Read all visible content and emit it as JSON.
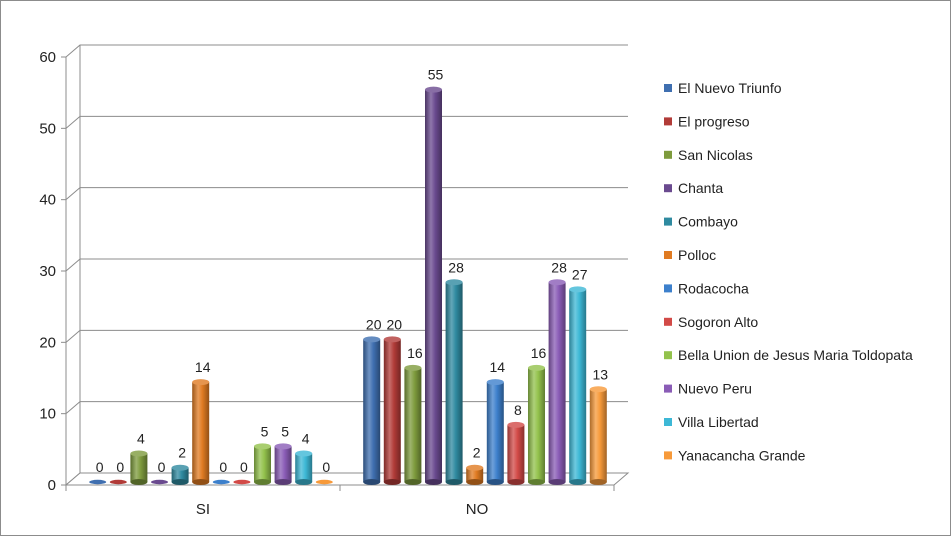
{
  "chart_data": {
    "type": "bar",
    "categories": [
      "SI",
      "NO"
    ],
    "ylim": [
      0,
      60
    ],
    "yticks": [
      0,
      10,
      20,
      30,
      40,
      50,
      60
    ],
    "grid": true,
    "legend_position": "right",
    "series": [
      {
        "name": "El Nuevo Triunfo",
        "color": "#3f6fb0",
        "values": [
          0,
          20
        ]
      },
      {
        "name": "El progreso",
        "color": "#b13b38",
        "values": [
          0,
          20
        ]
      },
      {
        "name": "San Nicolas",
        "color": "#7e9b3d",
        "values": [
          4,
          16
        ]
      },
      {
        "name": "Chanta",
        "color": "#6a4a8f",
        "values": [
          0,
          55
        ]
      },
      {
        "name": "Combayo",
        "color": "#2f8aa0",
        "values": [
          2,
          28
        ]
      },
      {
        "name": "Polloc",
        "color": "#e07b22",
        "values": [
          14,
          2
        ]
      },
      {
        "name": "Rodacocha",
        "color": "#3d80cc",
        "values": [
          0,
          14
        ]
      },
      {
        "name": "Sogoron Alto",
        "color": "#d24a47",
        "values": [
          0,
          8
        ]
      },
      {
        "name": "Bella Union de Jesus Maria Toldopata",
        "color": "#93c24c",
        "values": [
          5,
          16
        ]
      },
      {
        "name": "Nuevo Peru",
        "color": "#8a5cb6",
        "values": [
          5,
          28
        ]
      },
      {
        "name": "Villa Libertad",
        "color": "#3db8d6",
        "values": [
          4,
          27
        ]
      },
      {
        "name": "Yanacancha Grande",
        "color": "#f79a3a",
        "values": [
          0,
          13
        ]
      }
    ],
    "data_labels": [
      [
        "0",
        "0",
        "4",
        "0",
        "2",
        "14",
        "0",
        "0",
        "5",
        "5",
        "4",
        "0"
      ],
      [
        "20",
        "20",
        "16",
        "55",
        "28",
        "2",
        "14",
        "8",
        "16",
        "28",
        "27",
        "13"
      ]
    ]
  }
}
